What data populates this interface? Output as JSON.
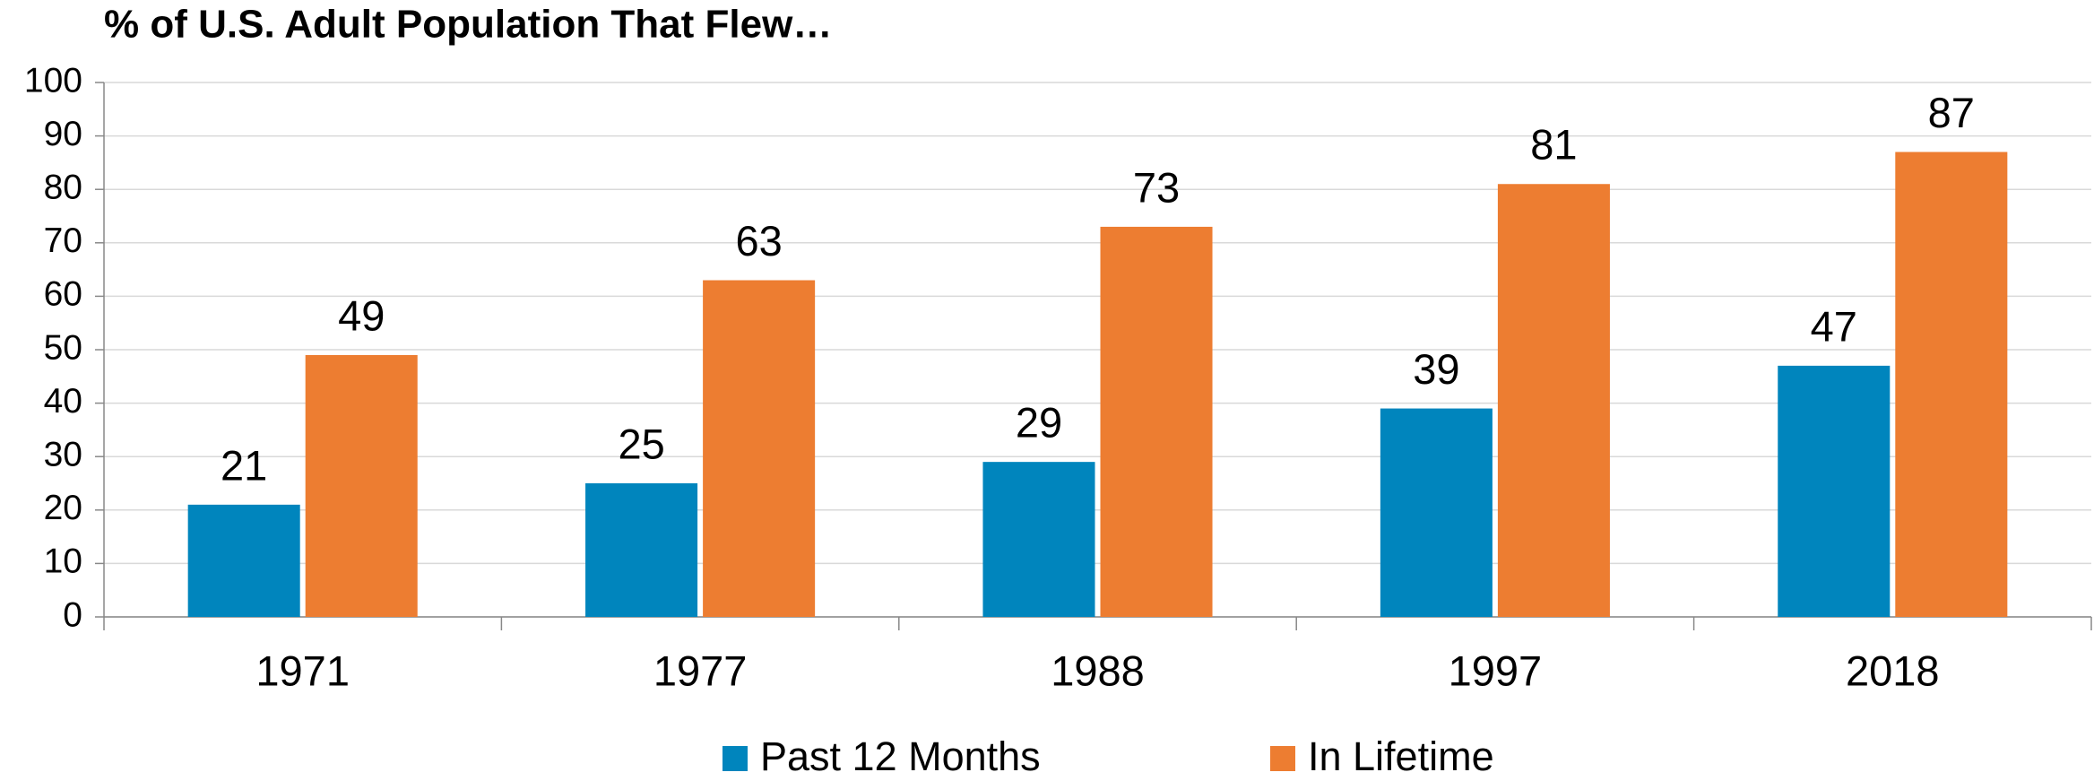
{
  "chart_data": {
    "type": "bar",
    "title": "% of U.S. Adult Population That Flew…",
    "categories": [
      "1971",
      "1977",
      "1988",
      "1997",
      "2018"
    ],
    "series": [
      {
        "name": "Past 12 Months",
        "color": "#0085bd",
        "values": [
          21,
          25,
          29,
          39,
          47
        ]
      },
      {
        "name": "In Lifetime",
        "color": "#ed7d31",
        "values": [
          49,
          63,
          73,
          81,
          87
        ]
      }
    ],
    "ylim": [
      0,
      100
    ],
    "yticks": [
      0,
      10,
      20,
      30,
      40,
      50,
      60,
      70,
      80,
      90,
      100
    ],
    "grid": true,
    "legend": "bottom"
  }
}
